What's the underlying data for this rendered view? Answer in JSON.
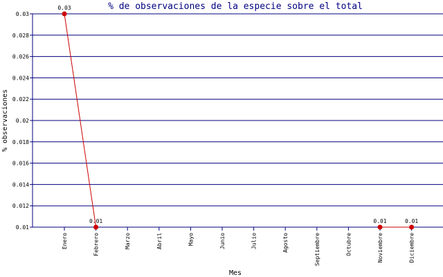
{
  "chart_data": {
    "type": "line",
    "title": "% de observaciones de la especie sobre el total",
    "xlabel": "Mes",
    "ylabel": "% observaciones",
    "categories": [
      "Enero",
      "Febrero",
      "Marzo",
      "Abril",
      "Mayo",
      "Junio",
      "Julio",
      "Agosto",
      "Septiembre",
      "Octubre",
      "Noviembre",
      "Diciembre"
    ],
    "series": [
      {
        "values": [
          0.03,
          0.01,
          null,
          null,
          null,
          null,
          null,
          null,
          null,
          null,
          0.01,
          0.01
        ],
        "labels": [
          "0.03",
          "0.01",
          "",
          "",
          "",
          "",
          "",
          "",
          "",
          "",
          "0.01",
          "0.01"
        ]
      }
    ],
    "yticks": [
      "0.01",
      "0.012",
      "0.014",
      "0.016",
      "0.018",
      "0.02",
      "0.022",
      "0.024",
      "0.026",
      "0.028",
      "0.03"
    ],
    "ylim": [
      0.01,
      0.03
    ],
    "grid": true,
    "colors": {
      "grid": "#000080",
      "axis": "#000080",
      "line": "#cc0000",
      "marker": "#cc0000",
      "title": "#000080"
    }
  }
}
